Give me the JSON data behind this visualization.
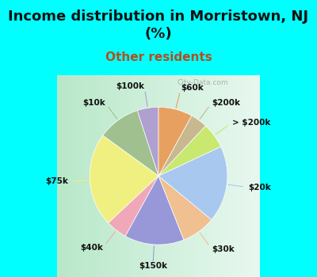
{
  "title": "Income distribution in Morristown, NJ\n(%)",
  "subtitle": "Other residents",
  "background_color": "#00FFFF",
  "chart_bg_left": "#c8ecd4",
  "chart_bg_right": "#e8f8f0",
  "title_fontsize": 13,
  "title_color": "#111111",
  "subtitle_fontsize": 11,
  "subtitle_color": "#b05020",
  "labels": [
    "$100k",
    "$10k",
    "$75k",
    "$40k",
    "$150k",
    "$30k",
    "$20k",
    "> $200k",
    "$200k",
    "$60k"
  ],
  "sizes": [
    5,
    10,
    22,
    5,
    14,
    8,
    18,
    6,
    4,
    8
  ],
  "colors": [
    "#b0a0d0",
    "#a0c090",
    "#f0f080",
    "#f0a8b8",
    "#9898d8",
    "#f0c090",
    "#a8c8f0",
    "#c8e870",
    "#c8b890",
    "#e8a060"
  ],
  "startangle": 90,
  "labeldistance": 1.22,
  "label_fontsize": 7.5,
  "watermark": "City-Data.com"
}
